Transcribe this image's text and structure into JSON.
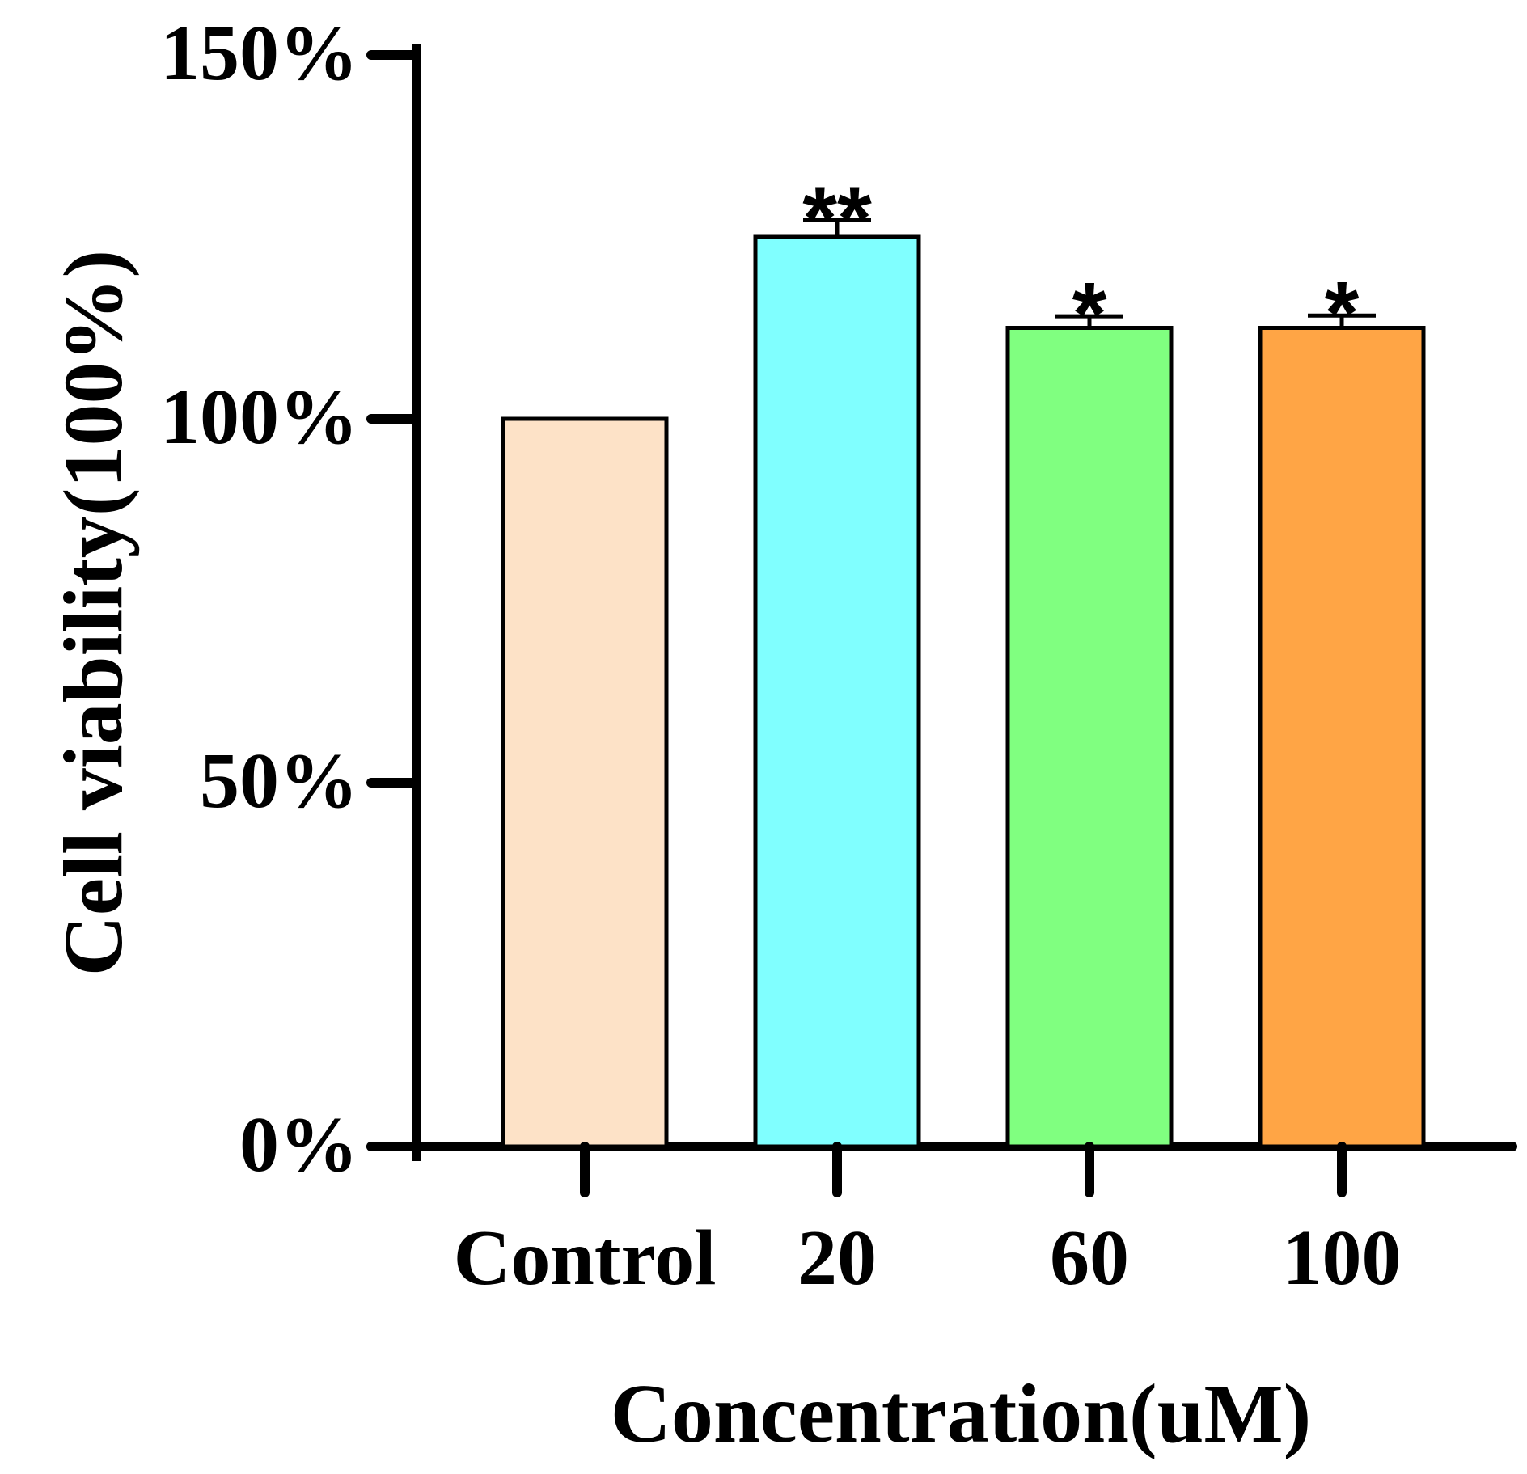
{
  "chart_data": {
    "type": "bar",
    "title": "",
    "xlabel": "Concentration(uM)",
    "ylabel": "Cell viability(100%)",
    "categories": [
      "Control",
      "20",
      "60",
      "100"
    ],
    "values": [
      100,
      125,
      112.5,
      112.5
    ],
    "errors": [
      0,
      2.3,
      1.6,
      1.7
    ],
    "significance": [
      "",
      "**",
      "*",
      "*"
    ],
    "colors": [
      "#FDE2C7",
      "#80FFFF",
      "#80FF80",
      "#FFA545"
    ],
    "ylim": [
      0,
      150
    ],
    "yticks": [
      0,
      50,
      100,
      150
    ],
    "ytick_labels": [
      "0%",
      "50%",
      "100%",
      "150%"
    ],
    "grid": false,
    "legend": "none"
  }
}
